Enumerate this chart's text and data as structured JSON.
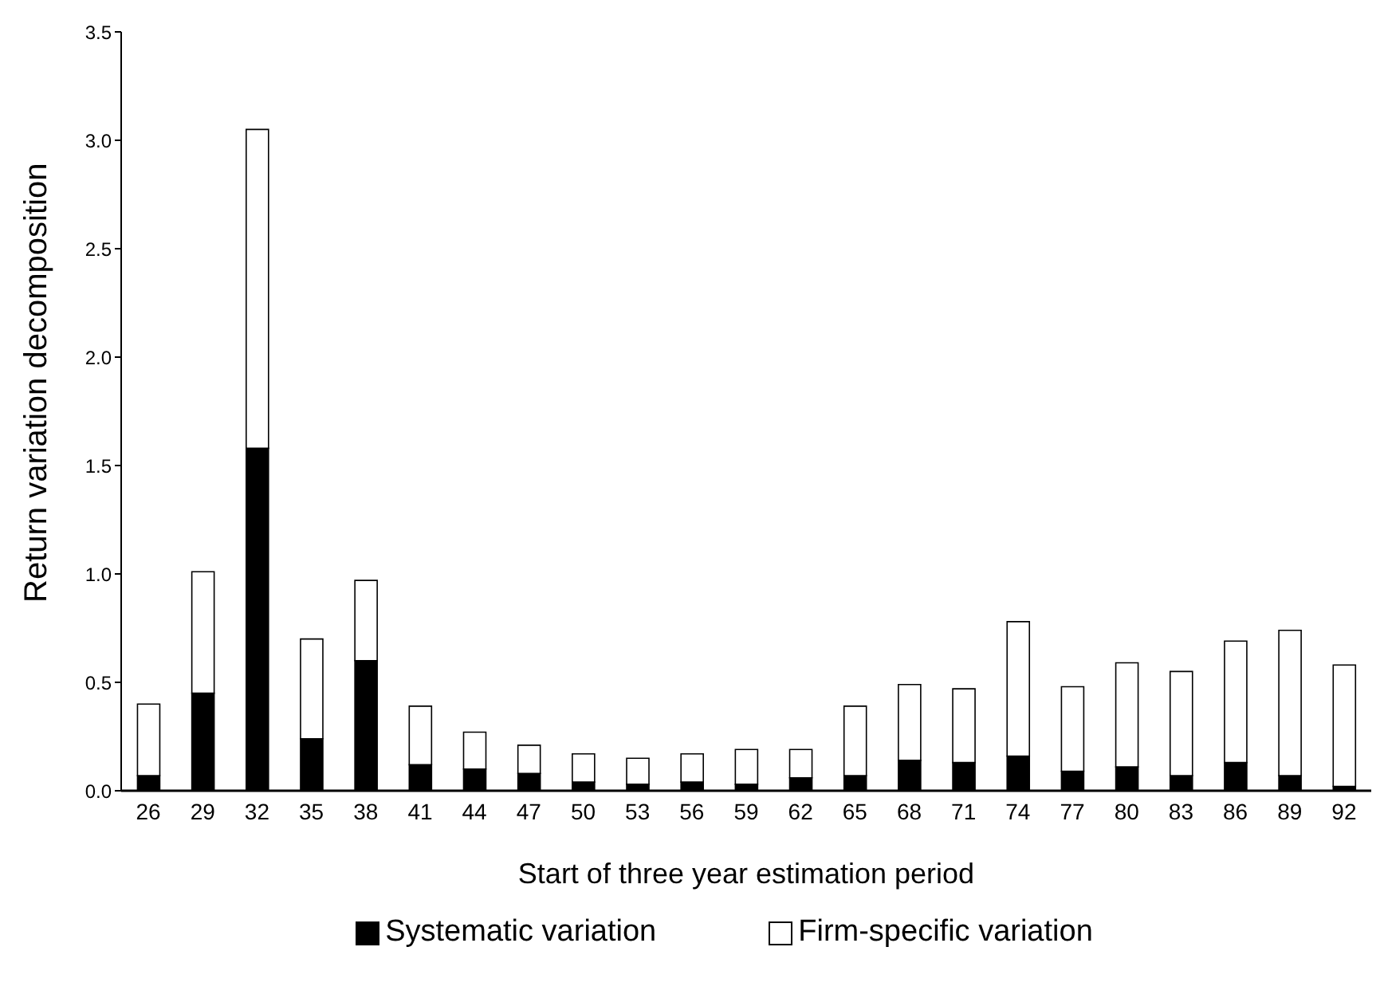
{
  "chart_data": {
    "type": "bar",
    "stacked": true,
    "xlabel": "Start of three year estimation period",
    "ylabel": "Return variation decomposition",
    "categories": [
      "26",
      "29",
      "32",
      "35",
      "38",
      "41",
      "44",
      "47",
      "50",
      "53",
      "56",
      "59",
      "62",
      "65",
      "68",
      "71",
      "74",
      "77",
      "80",
      "83",
      "86",
      "89",
      "92"
    ],
    "series": [
      {
        "name": "Systematic variation",
        "color": "#000000",
        "values": [
          0.07,
          0.45,
          1.58,
          0.24,
          0.6,
          0.12,
          0.1,
          0.08,
          0.04,
          0.03,
          0.04,
          0.03,
          0.06,
          0.07,
          0.14,
          0.13,
          0.16,
          0.09,
          0.11,
          0.07,
          0.13,
          0.07,
          0.02
        ]
      },
      {
        "name": "Firm-specific variation",
        "color": "#ffffff",
        "values": [
          0.33,
          0.56,
          1.47,
          0.46,
          0.37,
          0.27,
          0.17,
          0.13,
          0.13,
          0.12,
          0.13,
          0.16,
          0.13,
          0.32,
          0.35,
          0.34,
          0.62,
          0.39,
          0.48,
          0.48,
          0.56,
          0.67,
          0.56
        ]
      }
    ],
    "ylim": [
      0,
      3.5
    ],
    "yticks": [
      {
        "value": 0,
        "label": "0.0"
      },
      {
        "value": 0.5,
        "label": "0.5"
      },
      {
        "value": 1,
        "label": "1.0"
      },
      {
        "value": 1.5,
        "label": "1.5"
      },
      {
        "value": 2,
        "label": "2.0"
      },
      {
        "value": 2.5,
        "label": "2.5"
      },
      {
        "value": 3,
        "label": "3.0"
      },
      {
        "value": 3.5,
        "label": "3.5"
      }
    ],
    "grid": false,
    "legend": "bottom"
  }
}
